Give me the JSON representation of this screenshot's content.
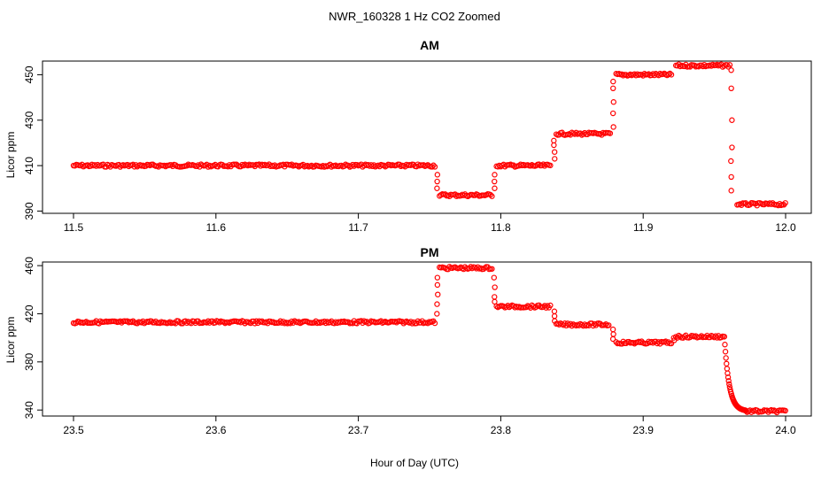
{
  "figure": {
    "title": "NWR_160328  1 Hz CO2 Zoomed",
    "xlabel": "Hour of Day (UTC)"
  },
  "chart_data": [
    {
      "type": "scatter",
      "title": "AM",
      "xlabel": "",
      "ylabel": "Licor ppm",
      "xlim": [
        11.5,
        12.0
      ],
      "ylim": [
        389,
        456
      ],
      "xticks": [
        11.5,
        11.6,
        11.7,
        11.8,
        11.9,
        12.0
      ],
      "xtick_labels": [
        "11.5",
        "11.6",
        "11.7",
        "11.8",
        "11.9",
        "12.0"
      ],
      "yticks": [
        390,
        410,
        430,
        450
      ],
      "ytick_labels": [
        "390",
        "410",
        "430",
        "450"
      ],
      "marker_color": "#ff0000",
      "marker": "open-circle",
      "grid": false,
      "segments": [
        {
          "x": [
            11.5,
            11.754
          ],
          "y": 410
        },
        {
          "x": [
            11.757,
            11.794
          ],
          "y": 397
        },
        {
          "x": [
            11.797,
            11.835
          ],
          "y": 410
        },
        {
          "x": [
            11.839,
            11.877
          ],
          "y": 424
        },
        {
          "x": [
            11.881,
            11.92
          ],
          "y": 450
        },
        {
          "x": [
            11.923,
            11.961
          ],
          "y": 454
        },
        {
          "x": [
            11.966,
            12.0
          ],
          "y": 393
        }
      ],
      "transitions": [
        {
          "x": 11.7555,
          "y": [
            400,
            403,
            406
          ]
        },
        {
          "x": 11.7955,
          "y": [
            400,
            403,
            406
          ]
        },
        {
          "x": 11.8375,
          "y": [
            413,
            416,
            419,
            421
          ]
        },
        {
          "x": 11.879,
          "y": [
            427,
            433,
            438,
            444,
            447
          ]
        },
        {
          "x": 11.962,
          "y": [
            452,
            444,
            430,
            418,
            412,
            405,
            399
          ]
        }
      ]
    },
    {
      "type": "scatter",
      "title": "PM",
      "xlabel": "Hour of Day (UTC)",
      "ylabel": "Licor ppm",
      "xlim": [
        23.5,
        24.0
      ],
      "ylim": [
        335,
        463
      ],
      "xticks": [
        23.5,
        23.6,
        23.7,
        23.8,
        23.9,
        24.0
      ],
      "xtick_labels": [
        "23.5",
        "23.6",
        "23.7",
        "23.8",
        "23.9",
        "24.0"
      ],
      "yticks": [
        340,
        380,
        420,
        460
      ],
      "ytick_labels": [
        "340",
        "380",
        "420",
        "460"
      ],
      "marker_color": "#ff0000",
      "marker": "open-circle",
      "grid": false,
      "segments": [
        {
          "x": [
            23.5,
            23.754
          ],
          "y": 413
        },
        {
          "x": [
            23.757,
            23.794
          ],
          "y": 458
        },
        {
          "x": [
            23.797,
            23.835
          ],
          "y": 426
        },
        {
          "x": [
            23.839,
            23.876
          ],
          "y": 411
        },
        {
          "x": [
            23.881,
            23.92
          ],
          "y": 396
        },
        {
          "x": [
            23.923,
            23.957
          ],
          "y": 401
        },
        {
          "x": [
            23.972,
            24.0
          ],
          "y": 339
        }
      ],
      "transitions": [
        {
          "x": 23.7555,
          "y": [
            420,
            428,
            436,
            444,
            450
          ]
        },
        {
          "x": 23.7955,
          "y": [
            450,
            442,
            434,
            430
          ]
        },
        {
          "x": 23.8375,
          "y": [
            422,
            418,
            414
          ]
        },
        {
          "x": 23.879,
          "y": [
            407,
            403,
            399
          ]
        },
        {
          "x": 23.9215,
          "y": [
            398,
            400
          ]
        }
      ],
      "decay": {
        "x": [
          23.957,
          23.972
        ],
        "y": [
          401,
          339
        ]
      }
    }
  ]
}
